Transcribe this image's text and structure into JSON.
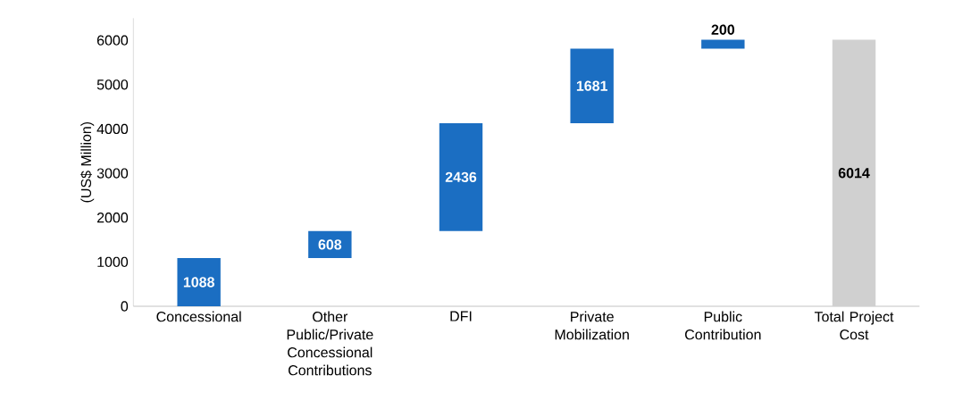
{
  "chart_data": {
    "type": "bar",
    "ylabel": "(US$ Million)",
    "categories": [
      "Concessional",
      "Other Public/Private Concessional Contributions",
      "DFI",
      "Private Mobilization",
      "Public Contribution",
      "Total Project Cost"
    ],
    "values": [
      1088,
      608,
      2436,
      1681,
      200,
      6014
    ],
    "base": [
      0,
      1088,
      1696,
      4132,
      5813,
      0
    ],
    "colors": [
      "#1b6ec2",
      "#1b6ec2",
      "#1b6ec2",
      "#1b6ec2",
      "#1b6ec2",
      "#d0d0d0"
    ],
    "ylim": [
      0,
      6500
    ],
    "yticks": [
      0,
      1000,
      2000,
      3000,
      4000,
      5000,
      6000
    ],
    "data_labels": true
  }
}
